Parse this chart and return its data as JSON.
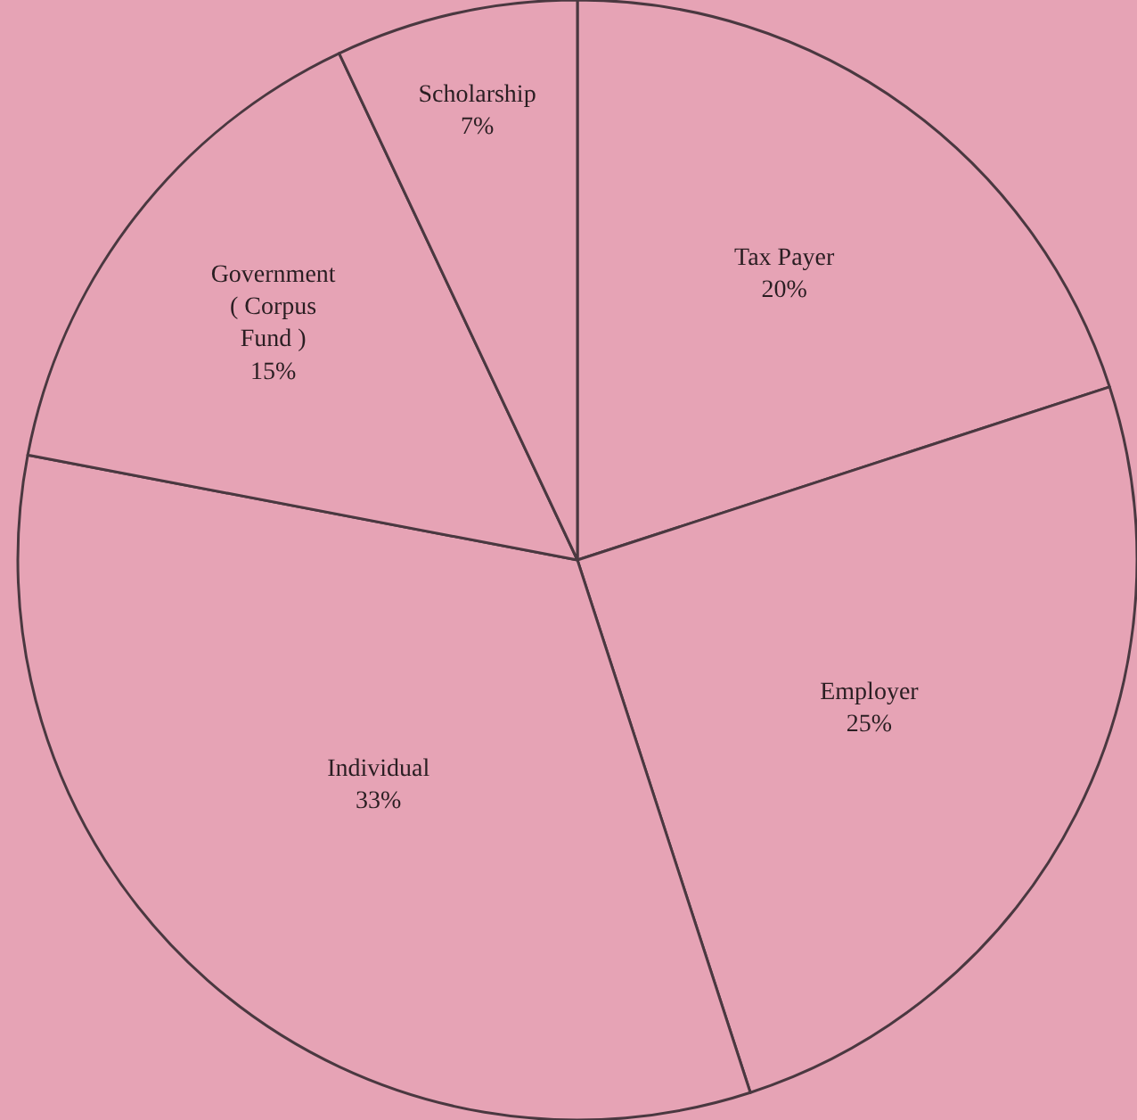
{
  "chart_data": {
    "type": "pie",
    "categories": [
      "Tax Payer",
      "Employer",
      "Individual",
      "Government ( Corpus Fund )",
      "Scholarship"
    ],
    "values": [
      20,
      25,
      33,
      15,
      7
    ],
    "value_labels": [
      "20%",
      "25%",
      "33%",
      "15%",
      "7%"
    ],
    "colors": [
      "#e6a3b5",
      "#e6a3b5",
      "#e6a3b5",
      "#e6a3b5",
      "#e6a3b5"
    ],
    "legend": false
  }
}
